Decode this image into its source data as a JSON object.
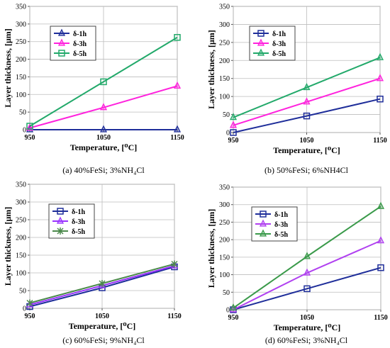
{
  "chart_data": [
    {
      "type": "line",
      "caption": "(a) 40%FeSi; 3%NH₄Cl",
      "xlabel": "Temperature, [⁰C]",
      "ylabel": "Layer thickness, [μm]",
      "x": [
        950,
        1050,
        1150
      ],
      "x_ticks": [
        "950",
        "1050",
        "1150"
      ],
      "xlim": [
        950,
        1150
      ],
      "ylim": [
        0,
        350
      ],
      "y_ticks": [
        "0",
        "50",
        "100",
        "150",
        "200",
        "250",
        "300",
        "350"
      ],
      "grid": true,
      "legend_position": "top-left",
      "series": [
        {
          "name": "δ-1h",
          "values": [
            0,
            0,
            0
          ],
          "color": "#1f2e9a",
          "marker": "triangle"
        },
        {
          "name": "δ-3h",
          "values": [
            5,
            63,
            124
          ],
          "color": "#ff22dd",
          "marker": "triangle"
        },
        {
          "name": "δ-5h",
          "values": [
            10,
            136,
            262
          ],
          "color": "#22a96a",
          "marker": "square"
        }
      ]
    },
    {
      "type": "line",
      "caption": "(b) 50%FeSi; 6%NH4Cl",
      "xlabel": "Temperature, [⁰C]",
      "ylabel": "Layer thickness, [μm]",
      "x": [
        950,
        1050,
        1150
      ],
      "x_ticks": [
        "950",
        "1050",
        "1150"
      ],
      "xlim": [
        950,
        1150
      ],
      "ylim": [
        0,
        350
      ],
      "y_ticks": [
        "0",
        "50",
        "100",
        "150",
        "200",
        "250",
        "300",
        "350"
      ],
      "grid": true,
      "legend_position": "top-left",
      "series": [
        {
          "name": "δ-1h",
          "values": [
            0,
            46,
            93
          ],
          "color": "#1f2e9a",
          "marker": "square"
        },
        {
          "name": "δ-3h",
          "values": [
            20,
            85,
            150
          ],
          "color": "#ff22dd",
          "marker": "triangle"
        },
        {
          "name": "δ-5h",
          "values": [
            42,
            125,
            208
          ],
          "color": "#22a96a",
          "marker": "triangle"
        }
      ]
    },
    {
      "type": "line",
      "caption": "(c) 60%FeSi; 9%NH₄Cl",
      "xlabel": "Temperature, [⁰C]",
      "ylabel": "Layer thickness, [μm]",
      "x": [
        950,
        1050,
        1150
      ],
      "x_ticks": [
        "950",
        "1050",
        "1150"
      ],
      "xlim": [
        950,
        1150
      ],
      "ylim": [
        0,
        350
      ],
      "y_ticks": [
        "0",
        "50",
        "100",
        "150",
        "200",
        "250",
        "300",
        "350"
      ],
      "grid": true,
      "legend_position": "top-left",
      "series": [
        {
          "name": "δ-1h",
          "values": [
            5,
            58,
            117
          ],
          "color": "#1f2e9a",
          "marker": "square"
        },
        {
          "name": "δ-3h",
          "values": [
            10,
            64,
            120
          ],
          "color": "#9933ff",
          "marker": "triangle"
        },
        {
          "name": "δ-5h",
          "values": [
            15,
            70,
            125
          ],
          "color": "#4c8a4c",
          "marker": "star"
        }
      ]
    },
    {
      "type": "line",
      "caption": "(d) 60%FeSi; 3%NH₄Cl",
      "xlabel": "Temperature, [⁰C]",
      "ylabel": "Layer thickness, [μm]",
      "x": [
        950,
        1050,
        1150
      ],
      "x_ticks": [
        "950",
        "1050",
        "1150"
      ],
      "xlim": [
        950,
        1150
      ],
      "ylim": [
        0,
        350
      ],
      "y_ticks": [
        "0",
        "50",
        "100",
        "150",
        "200",
        "250",
        "300",
        "350"
      ],
      "grid": true,
      "legend_position": "top-left",
      "series": [
        {
          "name": "δ-1h",
          "values": [
            0,
            60,
            120
          ],
          "color": "#1f2e9a",
          "marker": "square"
        },
        {
          "name": "δ-3h",
          "values": [
            0,
            105,
            197
          ],
          "color": "#b040f0",
          "marker": "triangle"
        },
        {
          "name": "δ-5h",
          "values": [
            5,
            152,
            295
          ],
          "color": "#3a9a4a",
          "marker": "triangle"
        }
      ]
    }
  ]
}
